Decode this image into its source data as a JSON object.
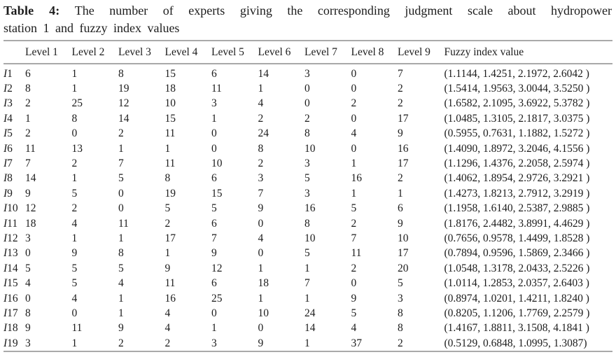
{
  "caption": {
    "label": "Table 4:",
    "line1": "The number of experts giving the corresponding judgment scale about hydropower",
    "line2": "station 1 and fuzzy index values"
  },
  "table": {
    "headers": [
      "Level 1",
      "Level 2",
      "Level 3",
      "Level 4",
      "Level 5",
      "Level 6",
      "Level 7",
      "Level 8",
      "Level 9",
      "Fuzzy index value"
    ],
    "rows": [
      {
        "label": "I1",
        "values": [
          "6",
          "1",
          "8",
          "15",
          "6",
          "14",
          "3",
          "0",
          "7"
        ],
        "fuzzy": "(1.1144, 1.4251, 2.1972, 2.6042 )"
      },
      {
        "label": "I2",
        "values": [
          "8",
          "1",
          "19",
          "18",
          "11",
          "1",
          "0",
          "0",
          "2"
        ],
        "fuzzy": "(1.5414, 1.9563, 3.0044, 3.5250 )"
      },
      {
        "label": "I3",
        "values": [
          "2",
          "25",
          "12",
          "10",
          "3",
          "4",
          "0",
          "2",
          "2"
        ],
        "fuzzy": "(1.6582, 2.1095, 3.6922, 5.3782 )"
      },
      {
        "label": "I4",
        "values": [
          "1",
          "8",
          "14",
          "15",
          "1",
          "2",
          "2",
          "0",
          "17"
        ],
        "fuzzy": "(1.0485, 1.3105, 2.1817, 3.0375 )"
      },
      {
        "label": "I5",
        "values": [
          "2",
          "0",
          "2",
          "11",
          "0",
          "24",
          "8",
          "4",
          "9"
        ],
        "fuzzy": "(0.5955, 0.7631, 1.1882, 1.5272 )"
      },
      {
        "label": "I6",
        "values": [
          "11",
          "13",
          "1",
          "1",
          "0",
          "8",
          "10",
          "0",
          "16"
        ],
        "fuzzy": "(1.4090, 1.8972, 3.2046, 4.1556 )"
      },
      {
        "label": "I7",
        "values": [
          "7",
          "2",
          "7",
          "11",
          "10",
          "2",
          "3",
          "1",
          "17"
        ],
        "fuzzy": "(1.1296, 1.4376, 2.2058, 2.5974 )"
      },
      {
        "label": "I8",
        "values": [
          "14",
          "1",
          "5",
          "8",
          "6",
          "3",
          "5",
          "16",
          "2"
        ],
        "fuzzy": "(1.4062, 1.8954, 2.9726, 3.2921 )"
      },
      {
        "label": "I9",
        "values": [
          "9",
          "5",
          "0",
          "19",
          "15",
          "7",
          "3",
          "1",
          "1"
        ],
        "fuzzy": "(1.4273, 1.8213, 2.7912, 3.2919 )"
      },
      {
        "label": "I10",
        "values": [
          "12",
          "2",
          "0",
          "5",
          "5",
          "9",
          "16",
          "5",
          "6"
        ],
        "fuzzy": "(1.1958, 1.6140, 2.5387, 2.9885 )"
      },
      {
        "label": "I11",
        "values": [
          "18",
          "4",
          "11",
          "2",
          "6",
          "0",
          "8",
          "2",
          "9"
        ],
        "fuzzy": "(1.8176, 2.4482, 3.8991, 4.4629 )"
      },
      {
        "label": "I12",
        "values": [
          "3",
          "1",
          "1",
          "17",
          "7",
          "4",
          "10",
          "7",
          "10"
        ],
        "fuzzy": "(0.7656, 0.9578, 1.4499, 1.8528 )"
      },
      {
        "label": "I13",
        "values": [
          "0",
          "9",
          "8",
          "1",
          "9",
          "0",
          "5",
          "11",
          "17"
        ],
        "fuzzy": "(0.7894, 0.9596, 1.5869, 2.3466 )"
      },
      {
        "label": "I14",
        "values": [
          "5",
          "5",
          "5",
          "9",
          "12",
          "1",
          "1",
          "2",
          "20"
        ],
        "fuzzy": "(1.0548, 1.3178, 2.0433, 2.5226 )"
      },
      {
        "label": "I15",
        "values": [
          "4",
          "5",
          "4",
          "11",
          "6",
          "18",
          "7",
          "0",
          "5"
        ],
        "fuzzy": "(1.0114, 1.2853, 2.0357, 2.6403 )"
      },
      {
        "label": "I16",
        "values": [
          "0",
          "4",
          "1",
          "16",
          "25",
          "1",
          "1",
          "9",
          "3"
        ],
        "fuzzy": "(0.8974, 1.0201, 1.4211, 1.8240 )"
      },
      {
        "label": "I17",
        "values": [
          "8",
          "0",
          "1",
          "4",
          "0",
          "10",
          "24",
          "5",
          "8"
        ],
        "fuzzy": "(0.8205, 1.1206, 1.7769, 2.2579 )"
      },
      {
        "label": "I18",
        "values": [
          "9",
          "11",
          "9",
          "4",
          "1",
          "0",
          "14",
          "4",
          "8"
        ],
        "fuzzy": "(1.4167, 1.8811, 3.1508, 4.1841 )"
      },
      {
        "label": "I19",
        "values": [
          "3",
          "1",
          "2",
          "2",
          "3",
          "9",
          "1",
          "37",
          "2"
        ],
        "fuzzy": "(0.5129, 0.6848, 1.0995, 1.3087)"
      }
    ]
  }
}
